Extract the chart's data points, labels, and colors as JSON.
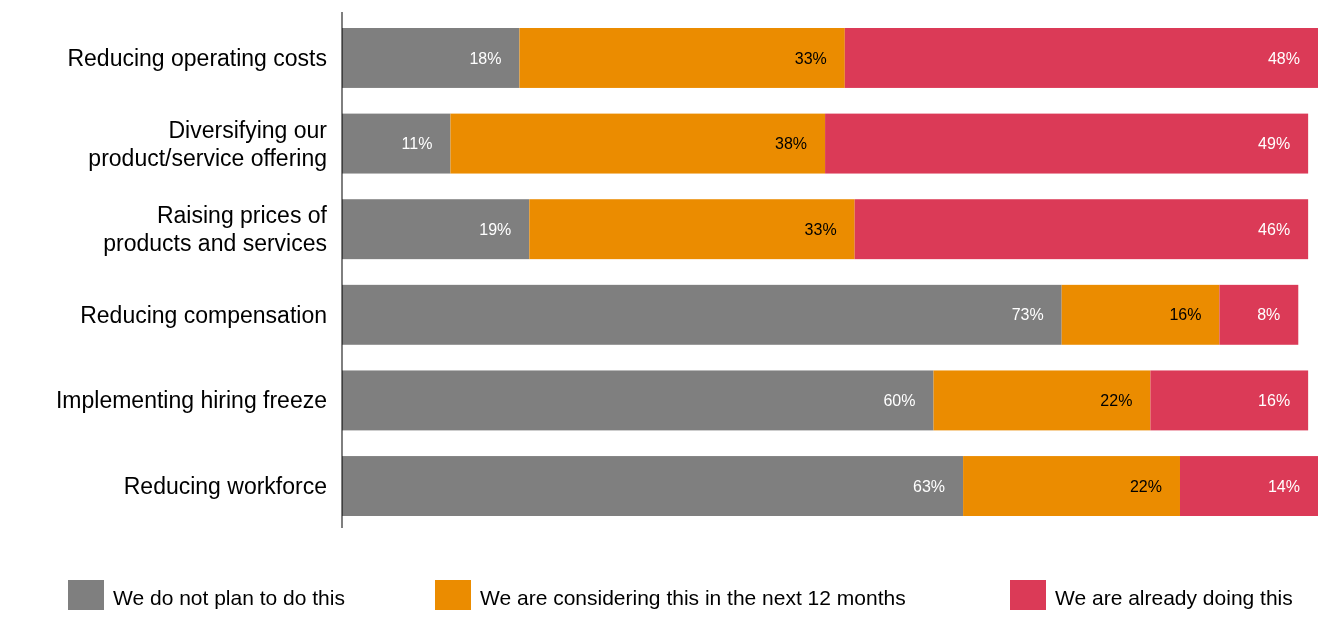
{
  "chart_data": {
    "type": "bar",
    "orientation": "horizontal",
    "stacked": true,
    "legend": "bottom",
    "categories": [
      "Reducing operating costs",
      "Diversifying our product/service offering",
      "Raising prices of products and services",
      "Reducing compensation",
      "Implementing hiring freeze",
      "Reducing workforce"
    ],
    "series": [
      {
        "name": "We do not plan to do this",
        "color": "#7f7f7f",
        "values": [
          18,
          11,
          19,
          73,
          60,
          63
        ],
        "value_labels": [
          "18%",
          "11%",
          "19%",
          "73%",
          "60%",
          "63%"
        ]
      },
      {
        "name": "We are considering this in the next 12 months",
        "color": "#eb8c00",
        "values": [
          33,
          38,
          33,
          16,
          22,
          22
        ],
        "value_labels": [
          "33%",
          "38%",
          "33%",
          "16%",
          "22%",
          "22%"
        ]
      },
      {
        "name": "We are already doing this",
        "color": "#db3a57",
        "values": [
          48,
          49,
          46,
          8,
          16,
          14
        ],
        "value_labels": [
          "48%",
          "49%",
          "46%",
          "8%",
          "16%",
          "14%"
        ]
      }
    ]
  }
}
